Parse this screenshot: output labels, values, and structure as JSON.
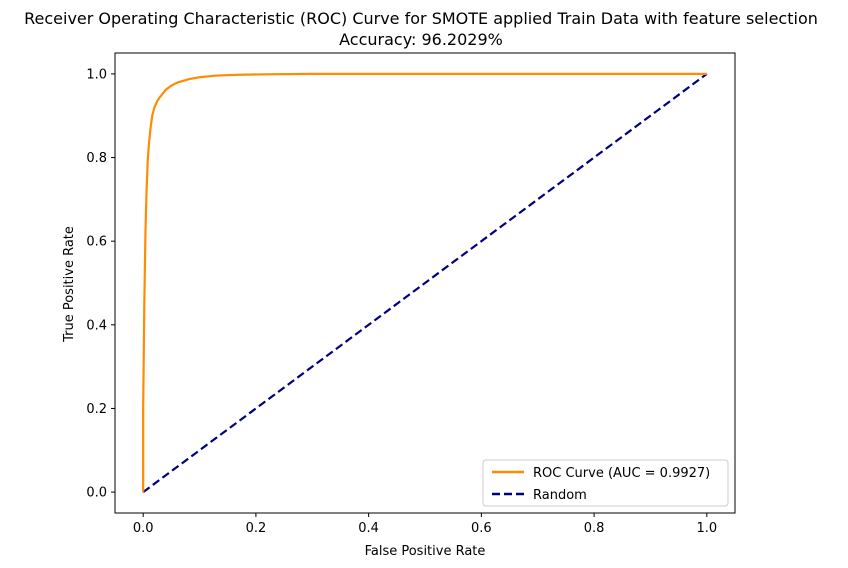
{
  "chart_data": {
    "type": "line",
    "title": "Receiver Operating Characteristic (ROC) Curve for SMOTE applied Train Data with feature selection",
    "subtitle": "Accuracy: 96.2029%",
    "xlabel": "False Positive Rate",
    "ylabel": "True Positive Rate",
    "xlim": [
      -0.05,
      1.05
    ],
    "ylim": [
      -0.05,
      1.05
    ],
    "xticks": [
      "0.0",
      "0.2",
      "0.4",
      "0.6",
      "0.8",
      "1.0"
    ],
    "yticks": [
      "0.0",
      "0.2",
      "0.4",
      "0.6",
      "0.8",
      "1.0"
    ],
    "grid": false,
    "legend_position": "lower right",
    "series": [
      {
        "name": "ROC Curve (AUC = 0.9927)",
        "color": "#ff8c00",
        "style": "solid",
        "x": [
          0.0,
          0.0,
          0.002,
          0.004,
          0.006,
          0.008,
          0.01,
          0.013,
          0.016,
          0.02,
          0.025,
          0.03,
          0.04,
          0.05,
          0.06,
          0.08,
          0.1,
          0.13,
          0.17,
          0.22,
          0.3,
          0.5,
          0.7,
          1.0
        ],
        "y": [
          0.0,
          0.2,
          0.45,
          0.62,
          0.72,
          0.79,
          0.83,
          0.87,
          0.9,
          0.92,
          0.935,
          0.945,
          0.962,
          0.972,
          0.979,
          0.987,
          0.992,
          0.996,
          0.998,
          0.999,
          1.0,
          1.0,
          1.0,
          1.0
        ]
      },
      {
        "name": "Random",
        "color": "#000080",
        "style": "dashed",
        "x": [
          0.0,
          1.0
        ],
        "y": [
          0.0,
          1.0
        ]
      }
    ]
  }
}
